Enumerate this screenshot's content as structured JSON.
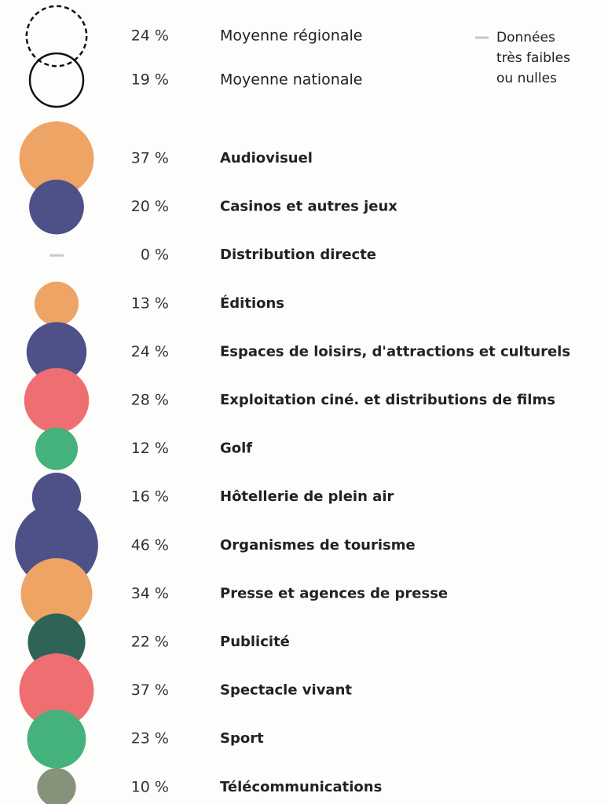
{
  "chart_data": {
    "type": "bubble",
    "references": [
      {
        "name": "Moyenne régionale",
        "value": 24,
        "value_label": "24 %",
        "style": "dashed"
      },
      {
        "name": "Moyenne nationale",
        "value": 19,
        "value_label": "19 %",
        "style": "solid"
      }
    ],
    "note_lines": [
      "Données",
      "très faibles",
      "ou nulles"
    ],
    "categories": [
      "Audiovisuel",
      "Casinos et autres jeux",
      "Distribution directe",
      "Éditions",
      "Espaces de loisirs, d'attractions et culturels",
      "Exploitation ciné. et distributions de films",
      "Golf",
      "Hôtellerie de plein air",
      "Organismes de tourisme",
      "Presse et agences de presse",
      "Publicité",
      "Spectacle vivant",
      "Sport",
      "Télécommunications"
    ],
    "values": [
      37,
      20,
      0,
      13,
      24,
      28,
      12,
      16,
      46,
      34,
      22,
      37,
      23,
      10
    ],
    "value_labels": [
      "37 %",
      "20 %",
      "0 %",
      "13 %",
      "24 %",
      "28 %",
      "12 %",
      "16 %",
      "46 %",
      "34 %",
      "22 %",
      "37 %",
      "23 %",
      "10 %"
    ],
    "colors": [
      "#eea464",
      "#4e5088",
      "#c8c8c8",
      "#eea464",
      "#4e5088",
      "#ef6e72",
      "#44b27a",
      "#4e5088",
      "#4e5088",
      "#eea464",
      "#2f6358",
      "#ef6e72",
      "#44b27a",
      "#87927a"
    ]
  }
}
